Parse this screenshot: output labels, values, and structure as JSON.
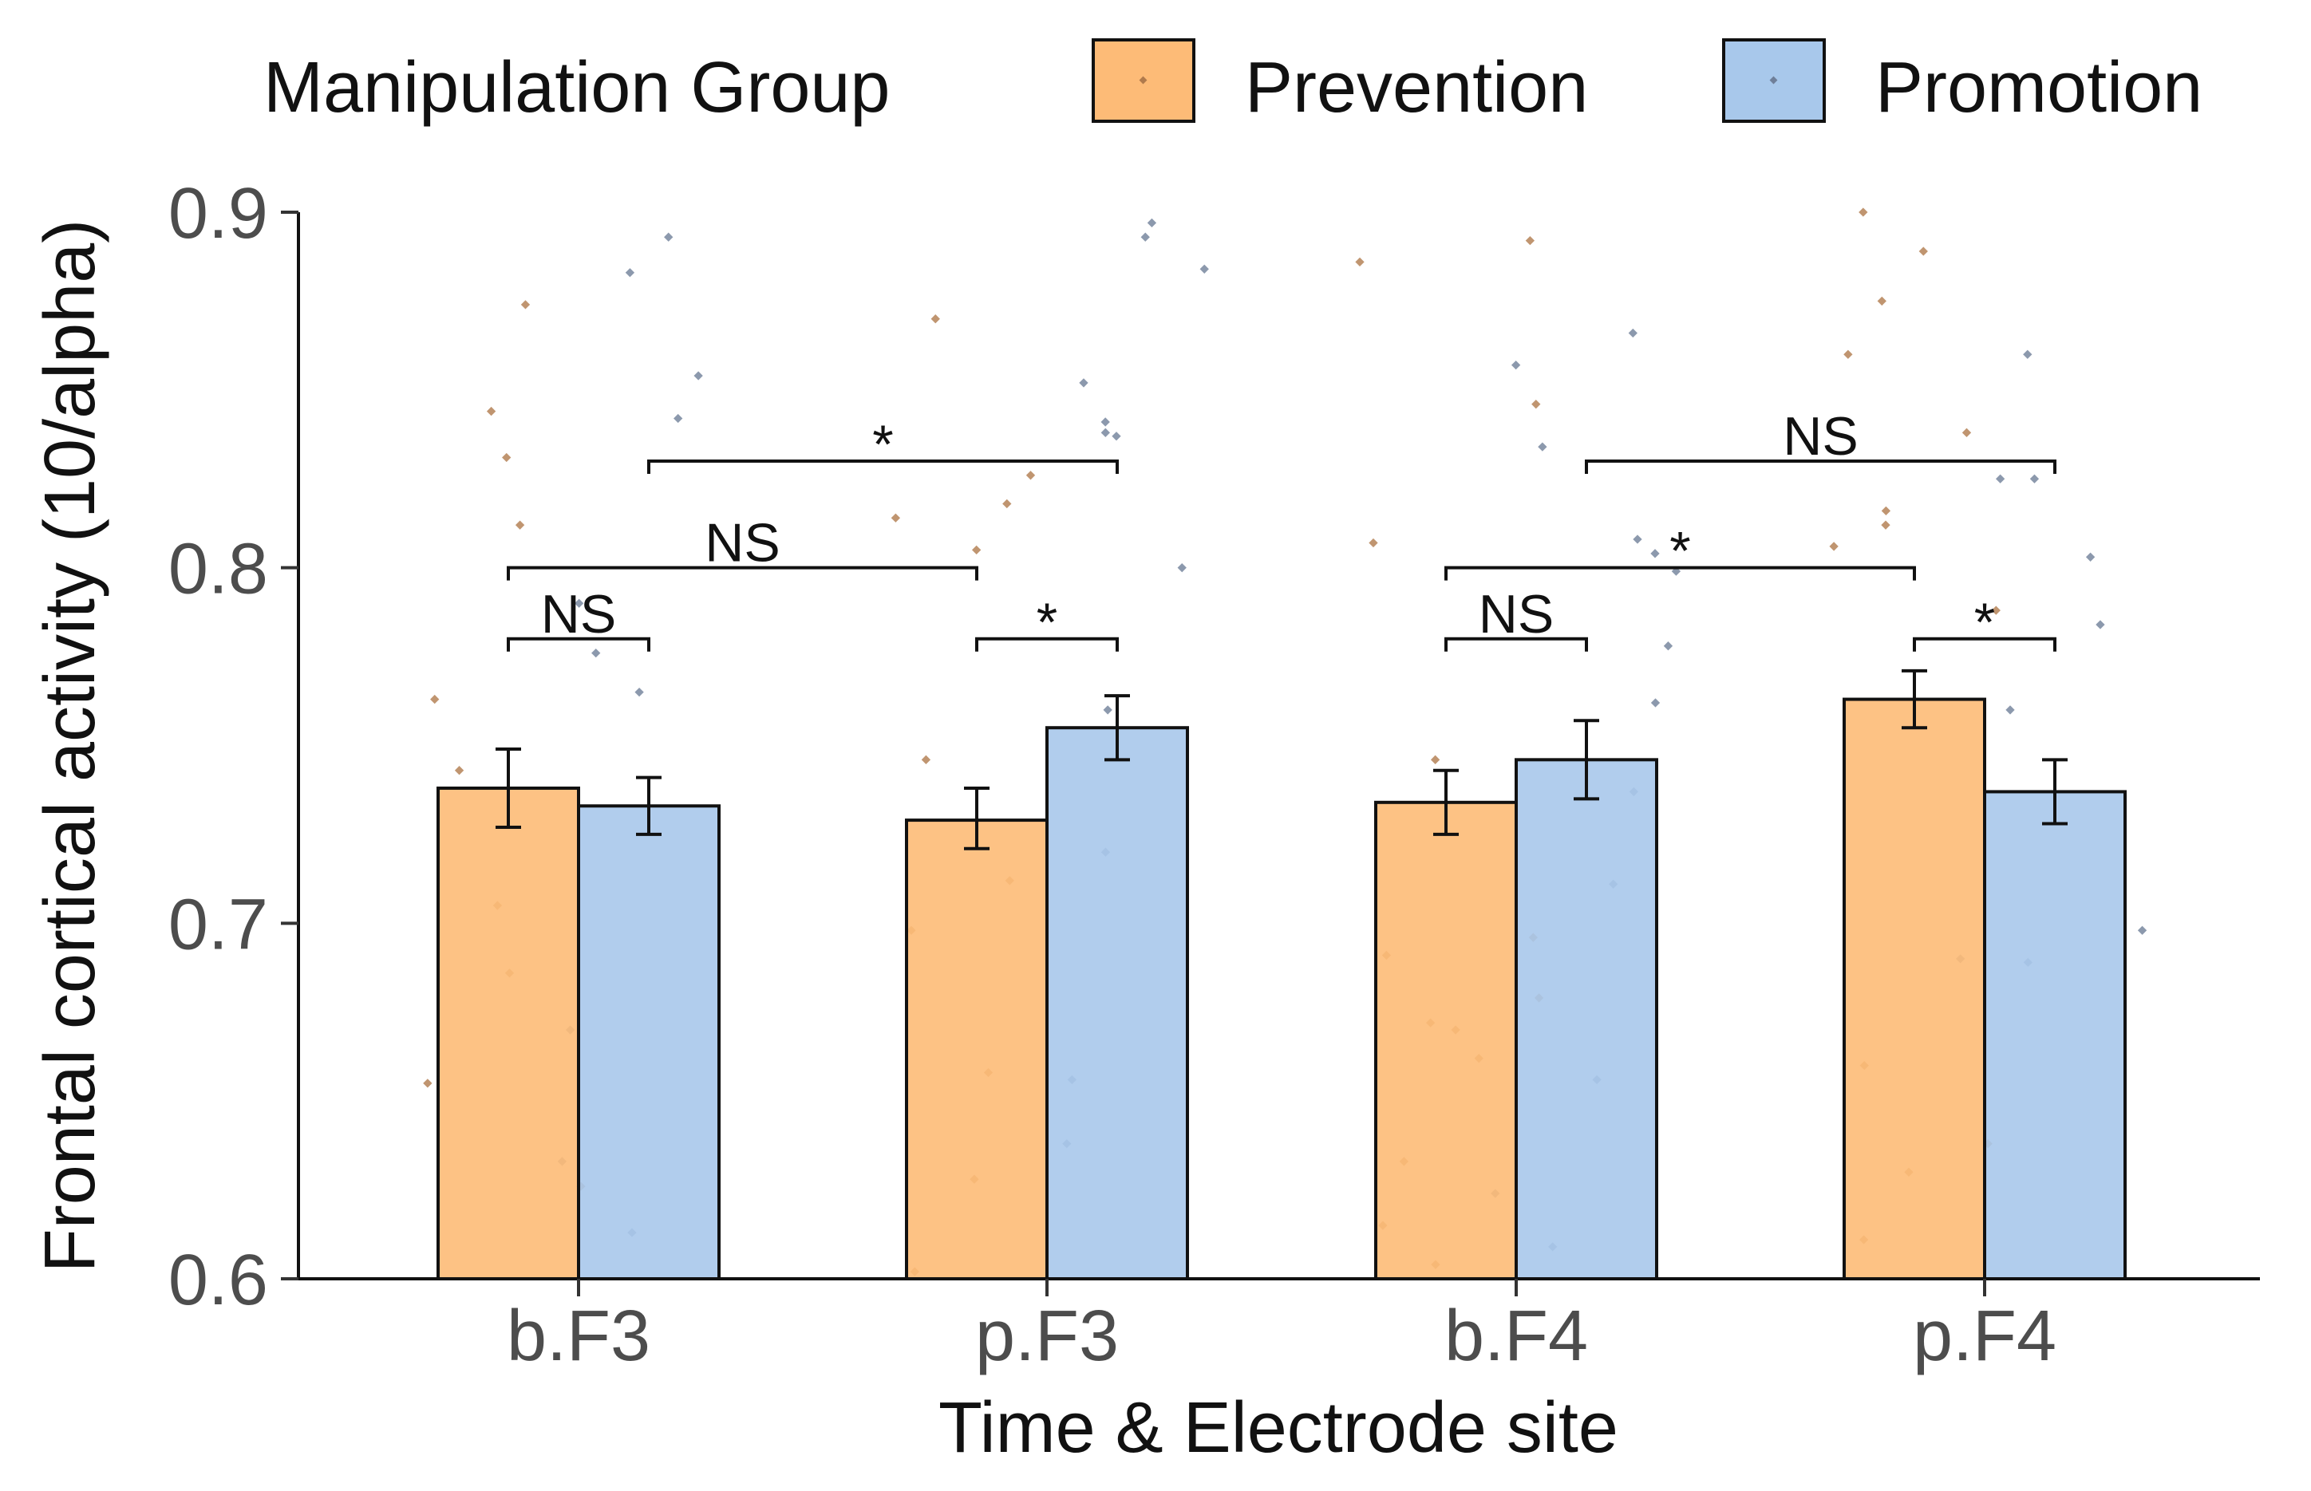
{
  "chart_data": {
    "type": "bar",
    "xlabel": "Time & Electrode site",
    "ylabel": "Frontal cortical activity (10/alpha)",
    "ylim": [
      0.6,
      0.9
    ],
    "yticks": [
      "0.6",
      "0.7",
      "0.8",
      "0.9"
    ],
    "categories": [
      "b.F3",
      "p.F3",
      "b.F4",
      "p.F4"
    ],
    "legend_title": "Manipulation Group",
    "legend_position": "top",
    "grid": false,
    "series": [
      {
        "name": "Prevention",
        "color": "#FDBB77",
        "values": [
          0.738,
          0.729,
          0.734,
          0.763
        ],
        "error_low": [
          0.727,
          0.721,
          0.725,
          0.755
        ],
        "error_high": [
          0.749,
          0.738,
          0.743,
          0.771
        ]
      },
      {
        "name": "Promotion",
        "color": "#A8C8EB",
        "values": [
          0.733,
          0.755,
          0.746,
          0.737
        ],
        "error_low": [
          0.725,
          0.746,
          0.735,
          0.728
        ],
        "error_high": [
          0.741,
          0.764,
          0.757,
          0.746
        ]
      }
    ],
    "points": {
      "Prevention": [
        [
          0.831,
          0.812,
          0.763,
          0.743,
          0.705,
          0.686,
          0.655,
          0.626,
          0.874,
          0.844
        ],
        [
          0.87,
          0.826,
          0.818,
          0.814,
          0.805,
          0.746,
          0.712,
          0.698,
          0.658,
          0.628,
          0.602
        ],
        [
          0.886,
          0.892,
          0.846,
          0.807,
          0.746,
          0.696,
          0.691,
          0.672,
          0.67,
          0.662,
          0.633,
          0.615,
          0.679,
          0.604
        ],
        [
          0.9,
          0.889,
          0.875,
          0.86,
          0.838,
          0.816,
          0.812,
          0.806,
          0.788,
          0.66,
          0.638,
          0.63,
          0.611
        ]
      ],
      "Promotion": [
        [
          0.893,
          0.883,
          0.854,
          0.842,
          0.79,
          0.776,
          0.765,
          0.67,
          0.633,
          0.613
        ],
        [
          0.897,
          0.893,
          0.884,
          0.852,
          0.841,
          0.837,
          0.838,
          0.8,
          0.76,
          0.72,
          0.656,
          0.638
        ],
        [
          0.866,
          0.857,
          0.834,
          0.808,
          0.804,
          0.799,
          0.778,
          0.762,
          0.737,
          0.711,
          0.656,
          0.624,
          0.609
        ],
        [
          0.86,
          0.825,
          0.825,
          0.803,
          0.784,
          0.76,
          0.698,
          0.69,
          0.689
        ]
      ]
    },
    "annotations": [
      {
        "label": "NS",
        "from": "b.F3 Prevention",
        "to": "b.F3 Promotion",
        "y": 0.78
      },
      {
        "label": "*",
        "from": "p.F3 Prevention",
        "to": "p.F3 Promotion",
        "y": 0.78
      },
      {
        "label": "NS",
        "from": "b.F3 Prevention",
        "to": "p.F3 Prevention",
        "y": 0.8
      },
      {
        "label": "*",
        "from": "b.F3 Promotion",
        "to": "p.F3 Promotion",
        "y": 0.83
      },
      {
        "label": "NS",
        "from": "b.F4 Prevention",
        "to": "b.F4 Promotion",
        "y": 0.78
      },
      {
        "label": "*",
        "from": "p.F4 Prevention",
        "to": "p.F4 Promotion",
        "y": 0.78
      },
      {
        "label": "*",
        "from": "b.F4 Prevention",
        "to": "p.F4 Prevention",
        "y": 0.8
      },
      {
        "label": "NS",
        "from": "b.F4 Promotion",
        "to": "p.F4 Promotion",
        "y": 0.83
      }
    ]
  }
}
